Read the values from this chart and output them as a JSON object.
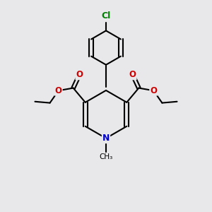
{
  "bg_color": "#e8e8eb",
  "bond_color": "#000000",
  "N_color": "#0000cc",
  "O_color": "#cc0000",
  "Cl_color": "#008000",
  "bond_width": 1.5,
  "figsize": [
    3.0,
    3.0
  ],
  "dpi": 100,
  "xlim": [
    0,
    10
  ],
  "ylim": [
    0,
    10
  ]
}
